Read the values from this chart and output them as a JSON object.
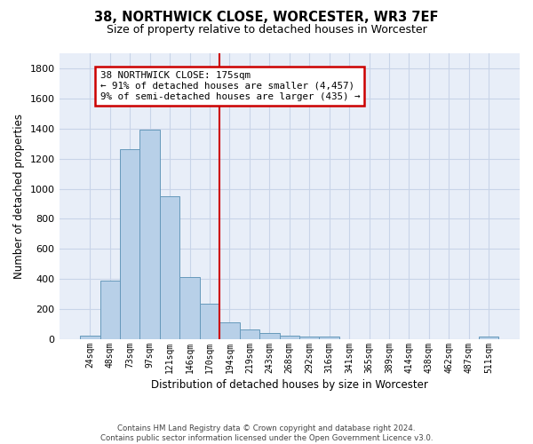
{
  "title1": "38, NORTHWICK CLOSE, WORCESTER, WR3 7EF",
  "title2": "Size of property relative to detached houses in Worcester",
  "xlabel": "Distribution of detached houses by size in Worcester",
  "ylabel": "Number of detached properties",
  "footnote": "Contains HM Land Registry data © Crown copyright and database right 2024.\nContains public sector information licensed under the Open Government Licence v3.0.",
  "bin_labels": [
    "24sqm",
    "48sqm",
    "73sqm",
    "97sqm",
    "121sqm",
    "146sqm",
    "170sqm",
    "194sqm",
    "219sqm",
    "243sqm",
    "268sqm",
    "292sqm",
    "316sqm",
    "341sqm",
    "365sqm",
    "389sqm",
    "414sqm",
    "438sqm",
    "462sqm",
    "487sqm",
    "511sqm"
  ],
  "bar_values": [
    25,
    390,
    1260,
    1395,
    950,
    415,
    235,
    115,
    65,
    42,
    22,
    15,
    18,
    0,
    0,
    0,
    0,
    0,
    0,
    0,
    18
  ],
  "bar_color": "#b8d0e8",
  "bar_edgecolor": "#6699bb",
  "property_line_x": 6.5,
  "property_line_color": "#cc0000",
  "ylim": [
    0,
    1900
  ],
  "yticks": [
    0,
    200,
    400,
    600,
    800,
    1000,
    1200,
    1400,
    1600,
    1800
  ],
  "annotation_text": "38 NORTHWICK CLOSE: 175sqm\n← 91% of detached houses are smaller (4,457)\n9% of semi-detached houses are larger (435) →",
  "annotation_box_facecolor": "#ffffff",
  "annotation_box_edgecolor": "#cc0000",
  "grid_color": "#c8d4e8",
  "background_color": "#e8eef8"
}
